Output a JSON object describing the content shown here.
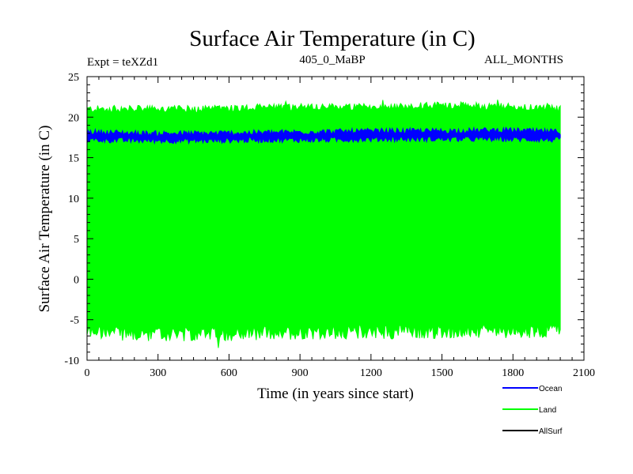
{
  "chart_data": {
    "type": "line",
    "title": "Surface Air Temperature (in C)",
    "subtitle_left": "Expt = teXZd1",
    "subtitle_center": "405_0_MaBP",
    "subtitle_right": "ALL_MONTHS",
    "xlabel": "Time (in years since start)",
    "ylabel": "Surface Air Temperature (in C)",
    "xlim": [
      0,
      2100
    ],
    "ylim": [
      -10,
      25
    ],
    "x_ticks": [
      0,
      300,
      600,
      900,
      1200,
      1500,
      1800,
      2100
    ],
    "y_ticks": [
      -10,
      -5,
      0,
      5,
      10,
      15,
      20,
      25
    ],
    "x_data_range": [
      0,
      2000
    ],
    "legend_position": "bottom-right",
    "series": [
      {
        "name": "Land",
        "color": "#00ff00",
        "description_stats": {
          "max_approx": 21.0,
          "min_approx": -6.5
        },
        "envelope_upper": [
          21.0,
          21.0,
          21.0,
          21.2,
          21.3,
          21.2,
          21.5,
          21.3,
          21.0
        ],
        "envelope_lower": [
          -6.5,
          -6.8,
          -6.8,
          -6.6,
          -6.5,
          -6.5,
          -6.4,
          -6.5,
          -6.2
        ],
        "envelope_x": [
          0,
          250,
          500,
          750,
          1000,
          1250,
          1500,
          1750,
          2000
        ]
      },
      {
        "name": "Ocean",
        "color": "#0000ff",
        "envelope_upper": [
          18.2,
          18.0,
          18.0,
          18.1,
          18.2,
          18.3,
          18.3,
          18.4,
          18.2
        ],
        "envelope_lower": [
          17.2,
          17.1,
          17.1,
          17.2,
          17.2,
          17.3,
          17.3,
          17.3,
          17.2
        ],
        "envelope_x": [
          0,
          250,
          500,
          750,
          1000,
          1250,
          1500,
          1750,
          2000
        ]
      },
      {
        "name": "AllSurf",
        "color": "#000000",
        "values": []
      }
    ],
    "legend": [
      {
        "label": "Ocean",
        "color": "#0000ff"
      },
      {
        "label": "Land",
        "color": "#00ff00"
      },
      {
        "label": "AllSurf",
        "color": "#000000"
      }
    ]
  }
}
